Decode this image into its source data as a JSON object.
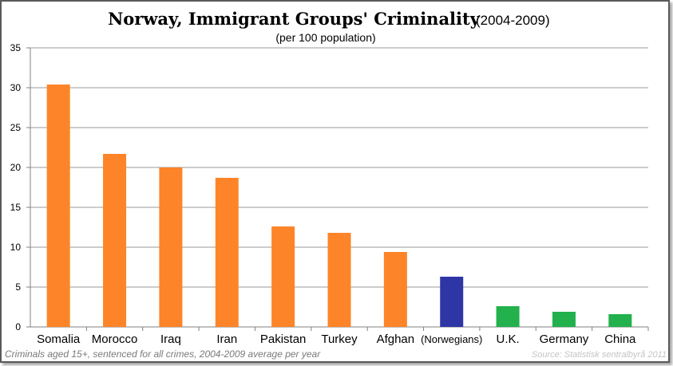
{
  "chart_data": {
    "type": "bar",
    "title": "Norway, Immigrant Groups' Criminality",
    "title_period": "(2004-2009)",
    "subtitle": "(per 100 population)",
    "categories": [
      "Somalia",
      "Morocco",
      "Iraq",
      "Iran",
      "Pakistan",
      "Turkey",
      "Afghan",
      "(Norwegians)",
      "U.K.",
      "Germany",
      "China"
    ],
    "values": [
      30.4,
      21.7,
      20.0,
      18.7,
      12.6,
      11.8,
      9.4,
      6.3,
      2.6,
      1.9,
      1.6
    ],
    "bar_colors": [
      "#fd8428",
      "#fd8428",
      "#fd8428",
      "#fd8428",
      "#fd8428",
      "#fd8428",
      "#fd8428",
      "#2e36a6",
      "#22b14c",
      "#22b14c",
      "#22b14c"
    ],
    "ylim": [
      0,
      35
    ],
    "yticks": [
      0,
      5,
      10,
      15,
      20,
      25,
      30,
      35
    ],
    "xlabel": "",
    "ylabel": "",
    "grid": true,
    "legend": "none",
    "footnote": "Criminals aged 15+, sentenced for all crimes, 2004-2009 average per year",
    "source": "Source: Statistisk sentralbyrå 2011"
  }
}
